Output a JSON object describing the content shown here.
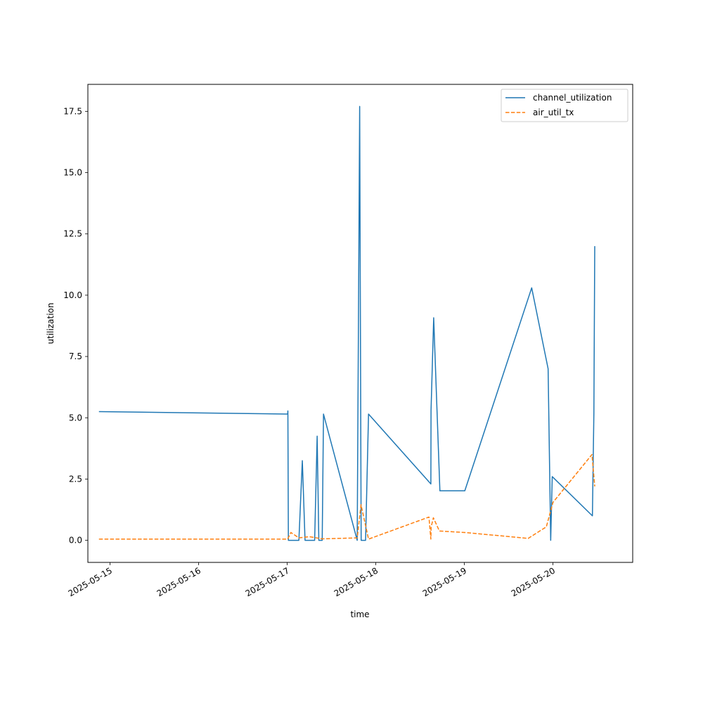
{
  "chart_data": {
    "type": "line",
    "title": "",
    "xlabel": "time",
    "ylabel": "utilization",
    "x_ticks": [
      "2025-05-15",
      "2025-05-16",
      "2025-05-17",
      "2025-05-18",
      "2025-05-19",
      "2025-05-20"
    ],
    "y_ticks": [
      "0.0",
      "2.5",
      "5.0",
      "7.5",
      "10.0",
      "12.5",
      "15.0",
      "17.5"
    ],
    "xlim": [
      "2025-05-14 18:00",
      "2025-05-20 21:36"
    ],
    "ylim": [
      -0.9,
      18.6
    ],
    "legend_position": "top-right",
    "grid": false,
    "series": [
      {
        "name": "channel_utilization",
        "color": "#1f77b4",
        "dash": "solid",
        "points": [
          [
            "2025-05-14 21:00",
            5.25
          ],
          [
            "2025-05-17 00:07",
            5.15
          ],
          [
            "2025-05-17 00:11",
            5.28
          ],
          [
            "2025-05-17 00:19",
            0.0
          ],
          [
            "2025-05-17 03:10",
            0.0
          ],
          [
            "2025-05-17 04:06",
            3.25
          ],
          [
            "2025-05-17 04:50",
            0.0
          ],
          [
            "2025-05-17 07:26",
            0.0
          ],
          [
            "2025-05-17 08:07",
            4.25
          ],
          [
            "2025-05-17 08:34",
            0.0
          ],
          [
            "2025-05-17 09:29",
            0.0
          ],
          [
            "2025-05-17 09:50",
            5.15
          ],
          [
            "2025-05-17 18:58",
            0.0
          ],
          [
            "2025-05-17 19:38",
            17.7
          ],
          [
            "2025-05-17 20:02",
            0.0
          ],
          [
            "2025-05-17 21:14",
            0.0
          ],
          [
            "2025-05-17 22:02",
            5.15
          ],
          [
            "2025-05-18 14:55",
            2.3
          ],
          [
            "2025-05-18 14:58",
            5.3
          ],
          [
            "2025-05-18 15:41",
            9.08
          ],
          [
            "2025-05-18 17:22",
            2.02
          ],
          [
            "2025-05-19 00:07",
            2.02
          ],
          [
            "2025-05-19 18:14",
            10.3
          ],
          [
            "2025-05-19 22:41",
            7.0
          ],
          [
            "2025-05-19 23:23",
            0.0
          ],
          [
            "2025-05-19 23:48",
            2.6
          ],
          [
            "2025-05-20 10:41",
            1.0
          ],
          [
            "2025-05-20 11:05",
            5.2
          ],
          [
            "2025-05-20 11:19",
            12.0
          ]
        ]
      },
      {
        "name": "air_util_tx",
        "color": "#ff7f0e",
        "dash": "dashed",
        "points": [
          [
            "2025-05-14 21:00",
            0.05
          ],
          [
            "2025-05-17 00:07",
            0.05
          ],
          [
            "2025-05-17 01:00",
            0.32
          ],
          [
            "2025-05-17 03:10",
            0.1
          ],
          [
            "2025-05-17 06:00",
            0.15
          ],
          [
            "2025-05-17 09:29",
            0.06
          ],
          [
            "2025-05-17 18:58",
            0.1
          ],
          [
            "2025-05-17 20:00",
            1.45
          ],
          [
            "2025-05-17 22:02",
            0.05
          ],
          [
            "2025-05-18 14:24",
            0.95
          ],
          [
            "2025-05-18 14:55",
            0.05
          ],
          [
            "2025-05-18 15:00",
            0.55
          ],
          [
            "2025-05-18 15:36",
            0.92
          ],
          [
            "2025-05-18 17:14",
            0.38
          ],
          [
            "2025-05-19 00:07",
            0.32
          ],
          [
            "2025-05-19 17:17",
            0.08
          ],
          [
            "2025-05-19 22:12",
            0.55
          ],
          [
            "2025-05-20 00:00",
            1.55
          ],
          [
            "2025-05-20 10:34",
            3.5
          ],
          [
            "2025-05-20 11:19",
            2.2
          ]
        ]
      }
    ]
  }
}
